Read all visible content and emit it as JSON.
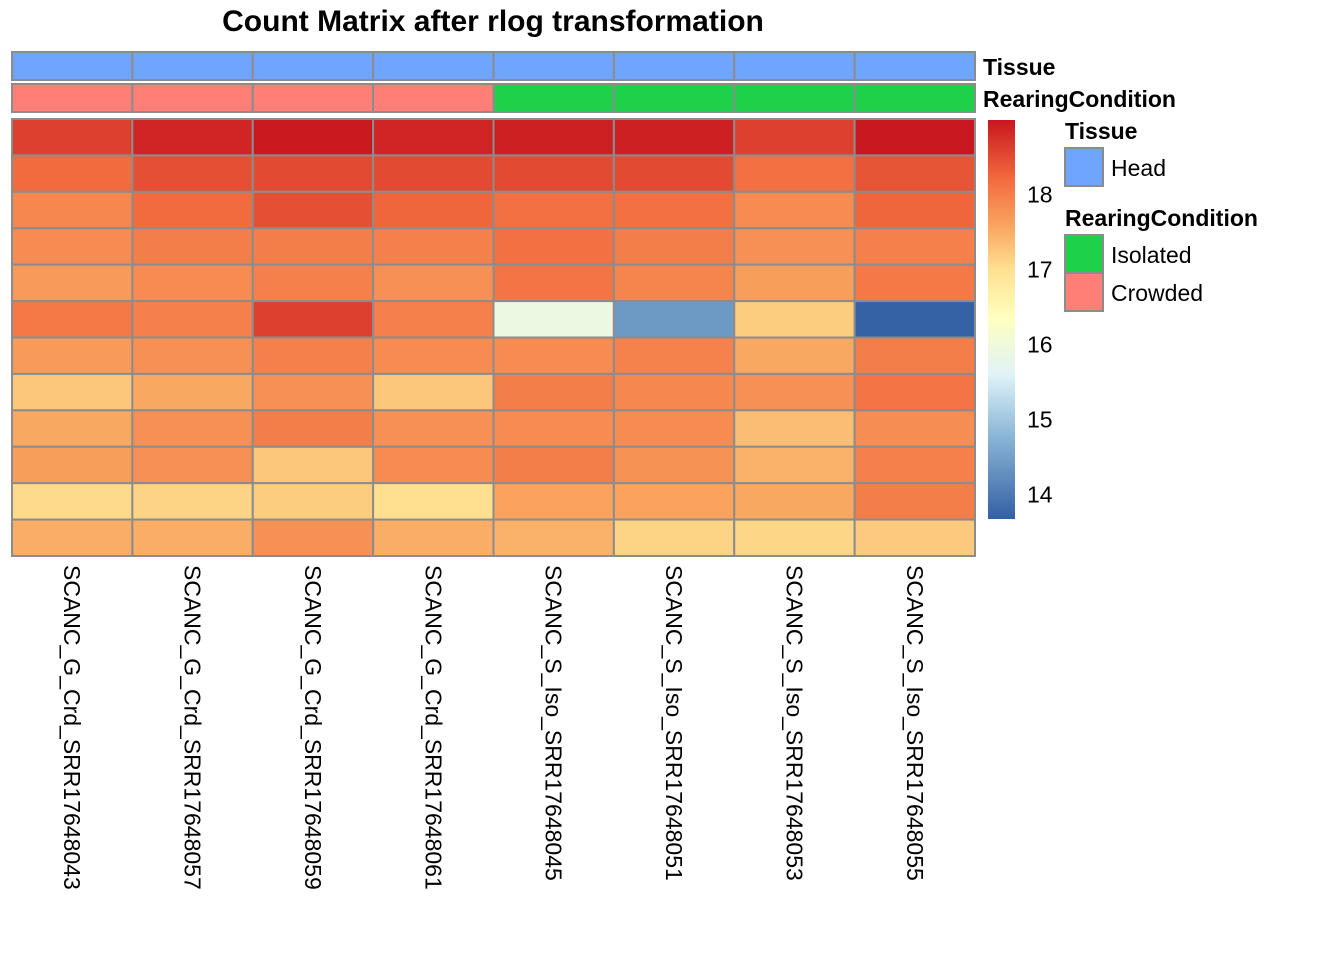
{
  "chart_data": {
    "type": "heatmap",
    "title": "Count Matrix after rlog transformation",
    "columns": [
      "SCANC_G_Crd_SRR17648043",
      "SCANC_G_Crd_SRR17648057",
      "SCANC_G_Crd_SRR17648059",
      "SCANC_G_Crd_SRR17648061",
      "SCANC_S_Iso_SRR17648045",
      "SCANC_S_Iso_SRR17648051",
      "SCANC_S_Iso_SRR17648053",
      "SCANC_S_Iso_SRR17648055"
    ],
    "values": [
      [
        18.6,
        18.85,
        18.95,
        18.85,
        18.9,
        18.9,
        18.6,
        18.97
      ],
      [
        18.2,
        18.45,
        18.5,
        18.5,
        18.5,
        18.5,
        18.15,
        18.4
      ],
      [
        17.9,
        18.2,
        18.45,
        18.25,
        18.15,
        18.15,
        17.85,
        18.25
      ],
      [
        17.85,
        18.0,
        18.0,
        17.97,
        18.15,
        18.0,
        17.8,
        17.97
      ],
      [
        17.7,
        17.85,
        17.97,
        17.8,
        18.1,
        17.93,
        17.65,
        18.05
      ],
      [
        18.05,
        17.97,
        18.6,
        17.97,
        15.9,
        14.4,
        17.2,
        13.7
      ],
      [
        17.7,
        17.8,
        17.97,
        17.85,
        17.85,
        17.95,
        17.55,
        18.0
      ],
      [
        17.25,
        17.55,
        17.8,
        17.25,
        18.0,
        17.9,
        17.8,
        18.1
      ],
      [
        17.55,
        17.8,
        18.0,
        17.8,
        17.85,
        17.85,
        17.35,
        17.82
      ],
      [
        17.65,
        17.8,
        17.25,
        17.85,
        18.0,
        17.78,
        17.45,
        17.97
      ],
      [
        17.05,
        17.12,
        17.2,
        17.0,
        17.6,
        17.6,
        17.55,
        18.0
      ],
      [
        17.5,
        17.5,
        17.8,
        17.5,
        17.45,
        17.12,
        17.1,
        17.22
      ]
    ],
    "color_range": [
      13.67,
      18.99
    ],
    "colorbar_ticks": [
      "14",
      "15",
      "16",
      "17",
      "18"
    ],
    "colorbar_tick_values": [
      14,
      15,
      16,
      17,
      18
    ],
    "palette": [
      "#3360A3",
      "#8DB8D8",
      "#E0F3F8",
      "#FFFFBF",
      "#FEE090",
      "#F9A35E",
      "#F26B3F",
      "#C8161E"
    ],
    "palette_values": [
      13.67,
      14.8,
      15.6,
      16.35,
      17.0,
      17.6,
      18.2,
      18.99
    ],
    "grid_color": "#8C8C8C",
    "annotations": [
      {
        "name": "Tissue",
        "values": [
          "Head",
          "Head",
          "Head",
          "Head",
          "Head",
          "Head",
          "Head",
          "Head"
        ]
      },
      {
        "name": "RearingCondition",
        "values": [
          "Crowded",
          "Crowded",
          "Crowded",
          "Crowded",
          "Isolated",
          "Isolated",
          "Isolated",
          "Isolated"
        ]
      }
    ],
    "legend": [
      {
        "title": "Tissue",
        "items": [
          {
            "label": "Head",
            "color": "#70A5FF"
          }
        ]
      },
      {
        "title": "RearingCondition",
        "items": [
          {
            "label": "Isolated",
            "color": "#1ED14B"
          },
          {
            "label": "Crowded",
            "color": "#FF7F76"
          }
        ]
      }
    ]
  }
}
